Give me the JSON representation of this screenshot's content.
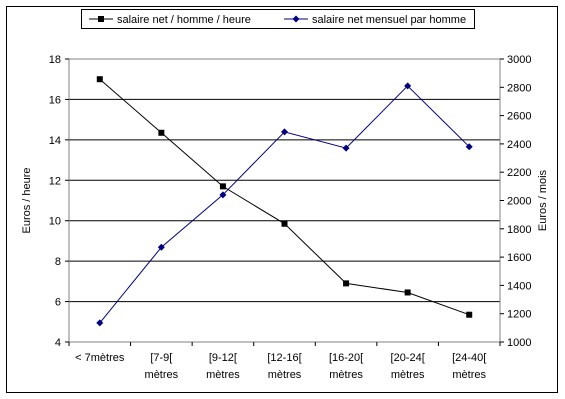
{
  "chart_data": {
    "type": "line",
    "categories": [
      [
        "< 7mètres"
      ],
      [
        "[7-9[",
        "mètres"
      ],
      [
        "[9-12[",
        "mètres"
      ],
      [
        "[12-16[",
        "mètres"
      ],
      [
        "[16-20[",
        "mètres"
      ],
      [
        "[20-24[",
        "mètres"
      ],
      [
        "[24-40[",
        "mètres"
      ]
    ],
    "series": [
      {
        "name": "salaire net / homme / heure",
        "axis": "left",
        "marker": "square",
        "color": "#000000",
        "values": [
          17.0,
          14.35,
          11.7,
          9.85,
          6.9,
          6.45,
          5.35
        ]
      },
      {
        "name": "salaire net mensuel par homme",
        "axis": "right",
        "marker": "diamond",
        "color": "#000080",
        "values": [
          1135,
          1670,
          2040,
          2485,
          2370,
          2810,
          2380
        ]
      }
    ],
    "y_left": {
      "label": "Euros / heure",
      "min": 4,
      "max": 18,
      "step": 2
    },
    "y_right": {
      "label": "Euros / mois",
      "min": 1000,
      "max": 3000,
      "step": 200
    },
    "grid": true,
    "legend_position": "top"
  }
}
